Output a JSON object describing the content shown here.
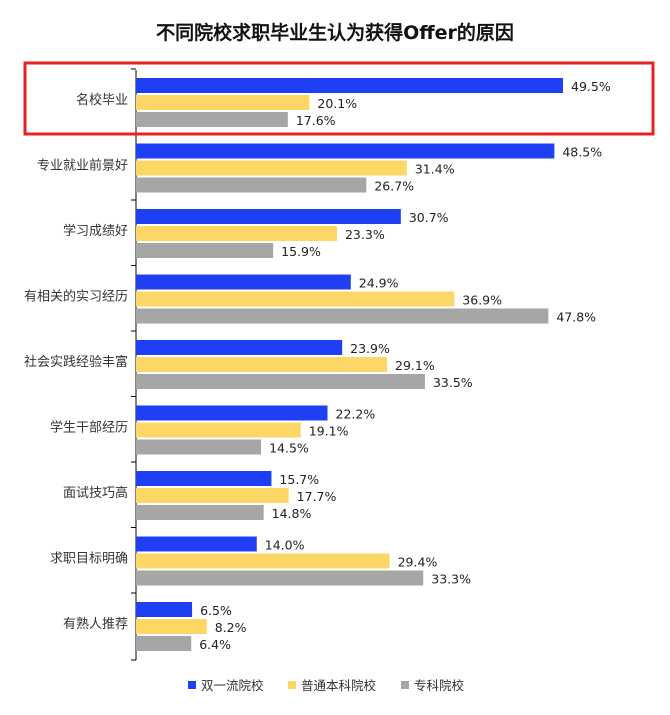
{
  "chart_data": {
    "type": "bar",
    "orientation": "horizontal",
    "title": "不同院校求职毕业生认为获得Offer的原因",
    "categories": [
      "名校毕业",
      "专业就业前景好",
      "学习成绩好",
      "有相关的实习经历",
      "社会实践经验丰富",
      "学生干部经历",
      "面试技巧高",
      "求职目标明确",
      "有熟人推荐"
    ],
    "series": [
      {
        "name": "双一流院校",
        "color": "#1f3ff5",
        "values": [
          49.5,
          48.5,
          30.7,
          24.9,
          23.9,
          22.2,
          15.7,
          14.0,
          6.5
        ],
        "labels": [
          "49.5%",
          "48.5%",
          "30.7%",
          "24.9%",
          "23.9%",
          "22.2%",
          "15.7%",
          "14.0%",
          "6.5%"
        ]
      },
      {
        "name": "普通本科院校",
        "color": "#fdd765",
        "values": [
          20.1,
          31.4,
          23.3,
          36.9,
          29.1,
          19.1,
          17.7,
          29.4,
          8.2
        ],
        "labels": [
          "20.1%",
          "31.4%",
          "23.3%",
          "36.9%",
          "29.1%",
          "19.1%",
          "17.7%",
          "29.4%",
          "8.2%"
        ]
      },
      {
        "name": "专科院校",
        "color": "#a6a6a6",
        "values": [
          17.6,
          26.7,
          15.9,
          47.8,
          33.5,
          14.5,
          14.8,
          33.3,
          6.4
        ],
        "labels": [
          "17.6%",
          "26.7%",
          "15.9%",
          "47.8%",
          "33.5%",
          "14.5%",
          "14.8%",
          "33.3%",
          "6.4%"
        ]
      }
    ],
    "xlim": [
      0,
      50
    ],
    "legend": "bottom",
    "grid": false,
    "highlight": {
      "category_index": 0,
      "color": "#e8201f"
    }
  }
}
